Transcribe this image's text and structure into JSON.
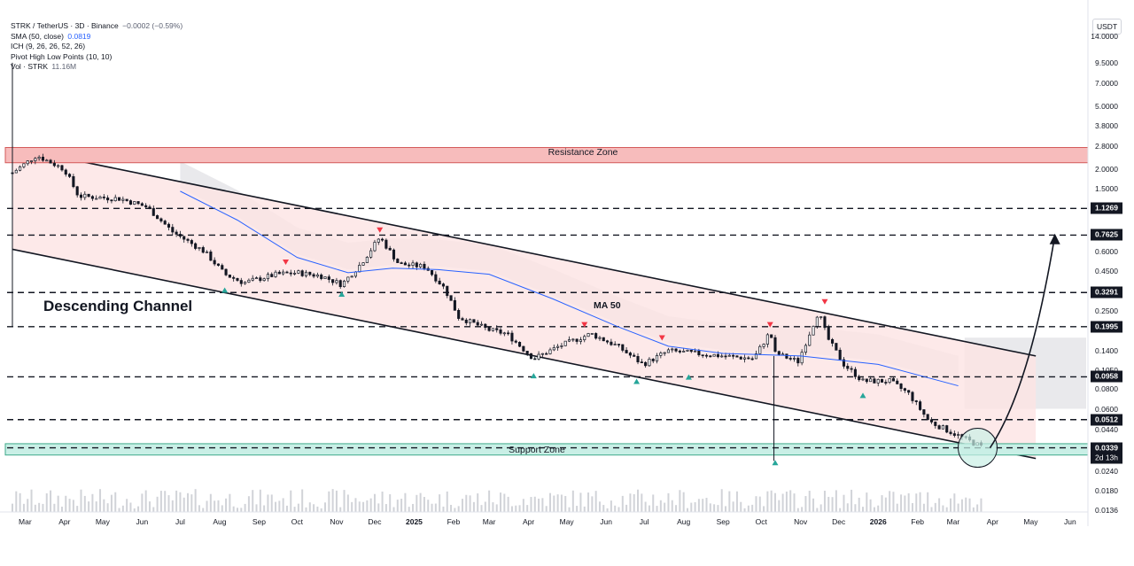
{
  "legend": {
    "title": "STRK / TetherUS · 3D · Binance",
    "change": "−0.0002 (−0.59%)",
    "sma_label": "SMA (50, close)",
    "sma_value": "0.0819",
    "ich_label": "ICH (9, 26, 26, 52, 26)",
    "pivot_label": "Pivot High Low Points (10, 10)",
    "vol_label": "Vol · STRK",
    "vol_value": "11.16M"
  },
  "unit": "USDT",
  "annotations": {
    "resistance_zone": "Resistance Zone",
    "support_zone": "Support Zone",
    "descending_channel": "Descending Channel",
    "ma50": "MA 50"
  },
  "price_ticks": [
    "14.0000",
    "9.5000",
    "7.0000",
    "5.0000",
    "3.8000",
    "2.8000",
    "2.0000",
    "1.5000",
    "0.6000",
    "0.4500",
    "0.2500",
    "0.1400",
    "0.1050",
    "0.0800",
    "0.0600",
    "0.0440",
    "0.0240",
    "0.0180",
    "0.0136"
  ],
  "price_tags": [
    {
      "text": "1.1269",
      "value": 1.1269
    },
    {
      "text": "0.7625",
      "value": 0.7625
    },
    {
      "text": "0.3291",
      "value": 0.3291
    },
    {
      "text": "0.1995",
      "value": 0.1995
    },
    {
      "text": "0.0958",
      "value": 0.0958
    },
    {
      "text": "0.0512",
      "value": 0.0512
    },
    {
      "text": "0.0339",
      "value": 0.0339
    }
  ],
  "countdown": "2d 13h",
  "time_axis": [
    {
      "text": "Mar",
      "bold": false
    },
    {
      "text": "Apr",
      "bold": false
    },
    {
      "text": "May",
      "bold": false
    },
    {
      "text": "Jun",
      "bold": false
    },
    {
      "text": "Jul",
      "bold": false
    },
    {
      "text": "Aug",
      "bold": false
    },
    {
      "text": "Sep",
      "bold": false
    },
    {
      "text": "Oct",
      "bold": false
    },
    {
      "text": "Nov",
      "bold": false
    },
    {
      "text": "Dec",
      "bold": false
    },
    {
      "text": "2025",
      "bold": true
    },
    {
      "text": "Feb",
      "bold": false
    },
    {
      "text": "Mar",
      "bold": false
    },
    {
      "text": "Apr",
      "bold": false
    },
    {
      "text": "May",
      "bold": false
    },
    {
      "text": "Jun",
      "bold": false
    },
    {
      "text": "Jul",
      "bold": false
    },
    {
      "text": "Aug",
      "bold": false
    },
    {
      "text": "Sep",
      "bold": false
    },
    {
      "text": "Oct",
      "bold": false
    },
    {
      "text": "Nov",
      "bold": false
    },
    {
      "text": "Dec",
      "bold": false
    },
    {
      "text": "2026",
      "bold": true
    },
    {
      "text": "Feb",
      "bold": false
    },
    {
      "text": "Mar",
      "bold": false
    },
    {
      "text": "Apr",
      "bold": false
    },
    {
      "text": "May",
      "bold": false
    },
    {
      "text": "Jun",
      "bold": false
    }
  ],
  "colors": {
    "candle": "#131722",
    "resistance_fill": "#f7bcbc",
    "resistance_border": "#d35a5a",
    "support_fill": "#c9efe6",
    "support_border": "#3fa98a",
    "channel_fill": "#fde4e4",
    "ma_line": "#2962ff",
    "pivot_high": "#f23645",
    "pivot_low": "#26a69a",
    "cloud": "#cfcfd4"
  },
  "chart_data": {
    "type": "candlestick",
    "pair": "STRK/USDT",
    "timeframe": "3D",
    "y_scale": "log",
    "ylim": [
      0.0136,
      14.0
    ],
    "x_range": [
      "2024-02-20",
      "2026-06-15"
    ],
    "resistance_zone": [
      2.2,
      2.75
    ],
    "support_zone": [
      0.0305,
      0.036
    ],
    "channel": {
      "upper": [
        [
          "2024-02-20",
          2.75
        ],
        [
          "2026-05-05",
          0.13
        ]
      ],
      "lower": [
        [
          "2024-02-20",
          0.62
        ],
        [
          "2026-05-05",
          0.029
        ]
      ]
    },
    "horizontal_levels": [
      1.1269,
      0.7625,
      0.3291,
      0.1995,
      0.0958,
      0.0512,
      0.0339
    ],
    "price_path": [
      [
        "2024-02-20",
        1.9
      ],
      [
        "2024-03-10",
        2.45
      ],
      [
        "2024-04-01",
        2.0
      ],
      [
        "2024-04-12",
        1.35
      ],
      [
        "2024-05-15",
        1.3
      ],
      [
        "2024-06-05",
        1.15
      ],
      [
        "2024-06-25",
        0.8
      ],
      [
        "2024-07-20",
        0.6
      ],
      [
        "2024-08-05",
        0.43
      ],
      [
        "2024-08-20",
        0.38
      ],
      [
        "2024-09-15",
        0.43
      ],
      [
        "2024-10-01",
        0.44
      ],
      [
        "2024-10-20",
        0.42
      ],
      [
        "2024-11-05",
        0.37
      ],
      [
        "2024-11-20",
        0.5
      ],
      [
        "2024-12-05",
        0.74
      ],
      [
        "2024-12-20",
        0.5
      ],
      [
        "2025-01-10",
        0.48
      ],
      [
        "2025-01-25",
        0.35
      ],
      [
        "2025-02-05",
        0.23
      ],
      [
        "2025-03-01",
        0.19
      ],
      [
        "2025-03-15",
        0.18
      ],
      [
        "2025-04-05",
        0.125
      ],
      [
        "2025-04-25",
        0.15
      ],
      [
        "2025-05-20",
        0.18
      ],
      [
        "2025-06-10",
        0.15
      ],
      [
        "2025-06-30",
        0.115
      ],
      [
        "2025-07-20",
        0.14
      ],
      [
        "2025-08-10",
        0.135
      ],
      [
        "2025-09-01",
        0.13
      ],
      [
        "2025-09-25",
        0.125
      ],
      [
        "2025-10-08",
        0.185
      ],
      [
        "2025-10-12",
        0.135
      ],
      [
        "2025-10-30",
        0.12
      ],
      [
        "2025-11-15",
        0.25
      ],
      [
        "2025-11-22",
        0.17
      ],
      [
        "2025-12-05",
        0.115
      ],
      [
        "2025-12-20",
        0.09
      ],
      [
        "2026-01-10",
        0.09
      ],
      [
        "2026-01-25",
        0.075
      ],
      [
        "2026-02-10",
        0.05
      ],
      [
        "2026-03-01",
        0.042
      ],
      [
        "2026-03-25",
        0.0339
      ]
    ],
    "sma50_path": [
      [
        "2024-07-01",
        1.45
      ],
      [
        "2024-08-15",
        0.95
      ],
      [
        "2024-10-01",
        0.55
      ],
      [
        "2024-11-10",
        0.44
      ],
      [
        "2024-12-15",
        0.47
      ],
      [
        "2025-01-20",
        0.46
      ],
      [
        "2025-03-01",
        0.43
      ],
      [
        "2025-04-20",
        0.3
      ],
      [
        "2025-06-10",
        0.2
      ],
      [
        "2025-07-20",
        0.15
      ],
      [
        "2025-09-01",
        0.135
      ],
      [
        "2025-11-01",
        0.13
      ],
      [
        "2026-01-01",
        0.115
      ],
      [
        "2026-03-05",
        0.084
      ]
    ],
    "pivot_highs": [
      [
        "2024-09-22",
        0.5
      ],
      [
        "2024-12-05",
        0.8
      ],
      [
        "2025-05-15",
        0.2
      ],
      [
        "2025-07-15",
        0.165
      ],
      [
        "2025-10-08",
        0.2
      ],
      [
        "2025-11-20",
        0.28
      ]
    ],
    "pivot_lows": [
      [
        "2024-08-05",
        0.35
      ],
      [
        "2024-11-05",
        0.33
      ],
      [
        "2025-04-05",
        0.1
      ],
      [
        "2025-06-25",
        0.092
      ],
      [
        "2025-08-05",
        0.098
      ],
      [
        "2025-10-12",
        0.028
      ],
      [
        "2025-12-20",
        0.075
      ]
    ],
    "projection": [
      [
        "2026-03-30",
        0.0339
      ],
      [
        "2026-04-25",
        0.07
      ],
      [
        "2026-05-10",
        0.25
      ],
      [
        "2026-05-20",
        0.76
      ]
    ]
  }
}
